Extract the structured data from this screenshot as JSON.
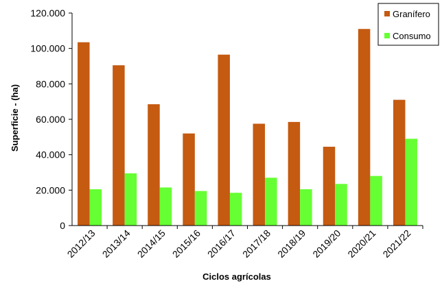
{
  "chart_data": {
    "type": "bar",
    "categories": [
      "2012/13",
      "2013/14",
      "2014/15",
      "2015/16",
      "2016/17",
      "2017/18",
      "2018/19",
      "2019/20",
      "2020/21",
      "2021/22"
    ],
    "series": [
      {
        "name": "Granífero",
        "color": "#c55a11",
        "values": [
          103500,
          90500,
          68500,
          52000,
          96500,
          57500,
          58500,
          44500,
          111000,
          71000
        ]
      },
      {
        "name": "Consumo",
        "color": "#66ff33",
        "values": [
          20500,
          29500,
          21500,
          19500,
          18500,
          27000,
          20500,
          23500,
          28000,
          49000
        ]
      }
    ],
    "xlabel": "Ciclos agrícolas",
    "ylabel": "Superficie - (ha)",
    "ylim": [
      0,
      120000
    ],
    "yticks": [
      0,
      20000,
      40000,
      60000,
      80000,
      100000,
      120000
    ],
    "ytick_labels": [
      "0",
      "20.000",
      "40.000",
      "60.000",
      "80.000",
      "100.000",
      "120.000"
    ],
    "grid": false,
    "legend_position": "top-right"
  }
}
